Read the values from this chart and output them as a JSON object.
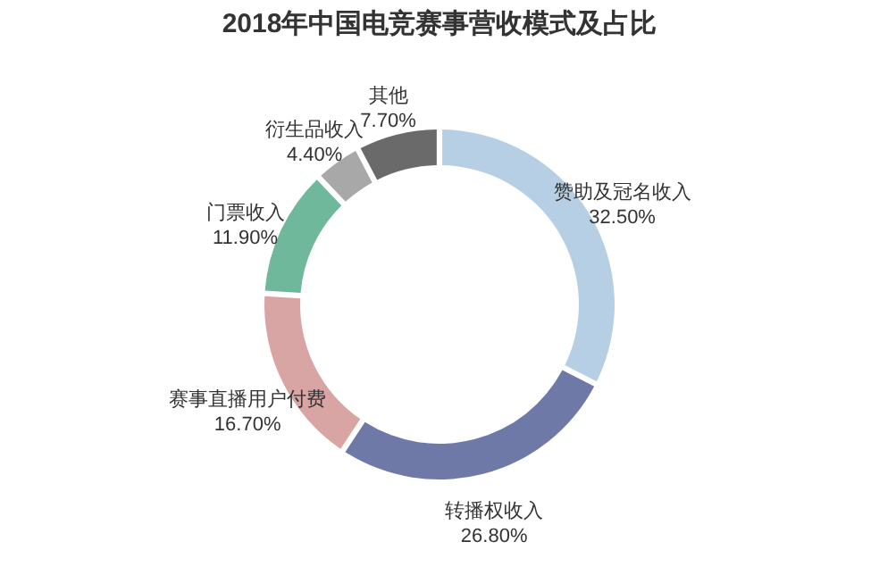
{
  "chart_data": {
    "type": "donut",
    "title": "2018年中国电竞赛事营收模式及占比",
    "categories": [
      "赞助及冠名收入",
      "转播权收入",
      "赛事直播用户付费",
      "门票收入",
      "衍生品收入",
      "其他"
    ],
    "values": [
      32.5,
      26.8,
      16.7,
      11.9,
      4.4,
      7.7
    ],
    "value_labels": [
      "32.50%",
      "26.80%",
      "16.70%",
      "11.90%",
      "4.40%",
      "7.70%"
    ],
    "colors": [
      "#b7cfe4",
      "#6f79a8",
      "#d9a4a4",
      "#6fb89c",
      "#a8a8a8",
      "#6a6a6a"
    ],
    "legend": false
  }
}
